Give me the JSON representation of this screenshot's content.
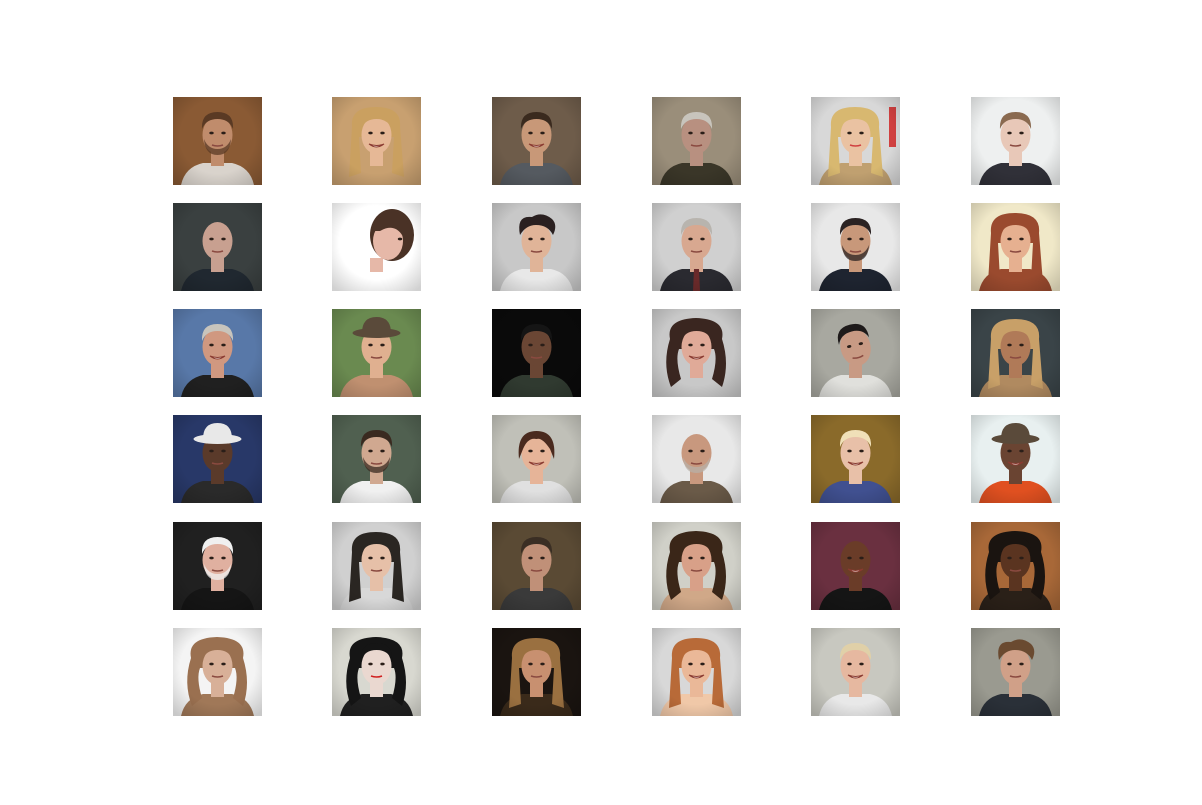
{
  "grid": {
    "rows": 6,
    "cols": 6,
    "tiles": [
      {
        "kind": "face",
        "sex": "m",
        "bg": "#8a5a34",
        "skin": "#c08c6c",
        "hair": "#5a3a24",
        "shirt": "#d9d3cc",
        "hairStyle": "short",
        "beard": true
      },
      {
        "kind": "face",
        "sex": "f",
        "bg": "#c8a070",
        "skin": "#e6b896",
        "hair": "#caa060",
        "shirt": "#c8a070",
        "hairStyle": "long",
        "smile": true
      },
      {
        "kind": "face",
        "sex": "m",
        "bg": "#6e5c4a",
        "skin": "#c89878",
        "hair": "#3a2a1e",
        "shirt": "#555a60",
        "hairStyle": "short",
        "smile": true
      },
      {
        "kind": "face",
        "sex": "m",
        "bg": "#9a8e7a",
        "skin": "#b89080",
        "hair": "#c8c4bc",
        "shirt": "#3a3628",
        "hairStyle": "short"
      },
      {
        "kind": "face",
        "sex": "f",
        "bg": "#d8d8d8",
        "skin": "#eac2a2",
        "hair": "#d8b870",
        "shirt": "#c0a070",
        "hairStyle": "long",
        "accent": "#d04040"
      },
      {
        "kind": "face",
        "sex": "m",
        "bg": "#eef0f0",
        "skin": "#e8c8b8",
        "hair": "#8a6a50",
        "shirt": "#303038",
        "hairStyle": "short"
      },
      {
        "kind": "face",
        "sex": "m",
        "bg": "#3a4040",
        "skin": "#c8a090",
        "hair": "#4a4440",
        "shirt": "#202830",
        "hairStyle": "bald"
      },
      {
        "kind": "face",
        "sex": "f",
        "bg": "#ffffff",
        "skin": "#e6b8a8",
        "hair": "#4a3226",
        "shirt": "#ffffff",
        "hairStyle": "side"
      },
      {
        "kind": "face",
        "sex": "m",
        "bg": "#c8c8c8",
        "skin": "#e0b498",
        "hair": "#2a2020",
        "shirt": "#e8e8e8",
        "hairStyle": "messy"
      },
      {
        "kind": "face",
        "sex": "m",
        "bg": "#d0d0d0",
        "skin": "#d8a890",
        "hair": "#b8b4ae",
        "shirt": "#2a2a30",
        "hairStyle": "short",
        "tie": true
      },
      {
        "kind": "face",
        "sex": "m",
        "bg": "#e8e8e8",
        "skin": "#c8987a",
        "hair": "#2a2222",
        "shirt": "#1e2430",
        "hairStyle": "short",
        "beard": true
      },
      {
        "kind": "face",
        "sex": "f",
        "bg": "#f0e8c8",
        "skin": "#e6b090",
        "hair": "#9a4a2e",
        "shirt": "#9a4a2e",
        "hairStyle": "long"
      },
      {
        "kind": "face",
        "sex": "m",
        "bg": "#5878a8",
        "skin": "#d09880",
        "hair": "#c8c4bc",
        "shirt": "#202020",
        "hairStyle": "short",
        "smile": true
      },
      {
        "kind": "face",
        "sex": "f",
        "bg": "#6a8a50",
        "skin": "#e0b090",
        "hair": "#8a6040",
        "shirt": "#c09070",
        "hairStyle": "hat",
        "hat": "#5a4a3a"
      },
      {
        "kind": "face",
        "sex": "m",
        "bg": "#0a0a0a",
        "skin": "#6a4634",
        "hair": "#151515",
        "shirt": "#303a30",
        "hairStyle": "short"
      },
      {
        "kind": "face",
        "sex": "f",
        "bg": "#c8c8c8",
        "skin": "#e0aa98",
        "hair": "#3a2620",
        "shirt": "#c8c8c8",
        "hairStyle": "curly",
        "smile": true
      },
      {
        "kind": "face",
        "sex": "m",
        "bg": "#a8a8a0",
        "skin": "#c89a84",
        "hair": "#1e1a1a",
        "shirt": "#e0e0dc",
        "hairStyle": "short",
        "tilt": true
      },
      {
        "kind": "face",
        "sex": "f",
        "bg": "#3a4448",
        "skin": "#b07a58",
        "hair": "#c8a068",
        "shirt": "#b08a60",
        "hairStyle": "long"
      },
      {
        "kind": "face",
        "sex": "m",
        "bg": "#283868",
        "skin": "#5a3a2a",
        "hair": "#202020",
        "shirt": "#2a2a2a",
        "hairStyle": "hat",
        "hat": "#e8e8e8"
      },
      {
        "kind": "face",
        "sex": "m",
        "bg": "#506050",
        "skin": "#d0a890",
        "hair": "#3a2a20",
        "shirt": "#f0f0f0",
        "hairStyle": "short",
        "beard": true
      },
      {
        "kind": "face",
        "sex": "f",
        "bg": "#c0c0b8",
        "skin": "#e6b498",
        "hair": "#4a2a1e",
        "shirt": "#e0e0e0",
        "hairStyle": "bob",
        "smile": true,
        "accent": "#c03030"
      },
      {
        "kind": "face",
        "sex": "m",
        "bg": "#e8e8e8",
        "skin": "#c8987e",
        "hair": "#b8b0a8",
        "shirt": "#6a5a48",
        "hairStyle": "bald",
        "beard": true
      },
      {
        "kind": "face",
        "sex": "f",
        "bg": "#8a6a2a",
        "skin": "#e8c0a8",
        "hair": "#f0e0b8",
        "shirt": "#405090",
        "hairStyle": "short",
        "smile": true
      },
      {
        "kind": "face",
        "sex": "f",
        "bg": "#e8f0f0",
        "skin": "#6a4432",
        "hair": "#2a2018",
        "shirt": "#e05020",
        "hairStyle": "hat",
        "hat": "#5a4a3a",
        "smile": true
      },
      {
        "kind": "face",
        "sex": "m",
        "bg": "#202020",
        "skin": "#e0b0a0",
        "hair": "#f0f0f0",
        "shirt": "#151515",
        "hairStyle": "white",
        "beard": true,
        "whiteBeard": true
      },
      {
        "kind": "face",
        "sex": "f",
        "bg": "#d0d0d0",
        "skin": "#e6c0a8",
        "hair": "#2a2622",
        "shirt": "#d8d8d8",
        "hairStyle": "long"
      },
      {
        "kind": "face",
        "sex": "m",
        "bg": "#5a4a34",
        "skin": "#c09078",
        "hair": "#3a2e24",
        "shirt": "#3a3a3a",
        "hairStyle": "short"
      },
      {
        "kind": "face",
        "sex": "f",
        "bg": "#d0d0c8",
        "skin": "#d8a088",
        "hair": "#3a2618",
        "shirt": "#d0a888",
        "hairStyle": "curly"
      },
      {
        "kind": "face",
        "sex": "m",
        "bg": "#6a3040",
        "skin": "#6a3c28",
        "hair": "#151010",
        "shirt": "#151515",
        "hairStyle": "bald",
        "smile": true
      },
      {
        "kind": "face",
        "sex": "m",
        "bg": "#a86838",
        "skin": "#5a3420",
        "hair": "#1a1410",
        "shirt": "#2a2018",
        "hairStyle": "curly"
      },
      {
        "kind": "face",
        "sex": "f",
        "bg": "#f4f4f4",
        "skin": "#d8b098",
        "hair": "#9a7050",
        "shirt": "#a07858",
        "hairStyle": "curly"
      },
      {
        "kind": "face",
        "sex": "f",
        "bg": "#d8d8d0",
        "skin": "#ead8d0",
        "hair": "#151515",
        "shirt": "#202020",
        "hairStyle": "curly",
        "accent": "#d02020"
      },
      {
        "kind": "face",
        "sex": "f",
        "bg": "#1a1410",
        "skin": "#c89070",
        "hair": "#9a7040",
        "shirt": "#3a2a1a",
        "hairStyle": "long"
      },
      {
        "kind": "face",
        "sex": "f",
        "bg": "#d8d8d8",
        "skin": "#eab898",
        "hair": "#b86a38",
        "shirt": "#f0c8a8",
        "hairStyle": "long",
        "smile": true
      },
      {
        "kind": "face",
        "sex": "f",
        "bg": "#c8c8c0",
        "skin": "#e6b8a0",
        "hair": "#e0d0a8",
        "shirt": "#e8e8e8",
        "hairStyle": "short",
        "smile": true
      },
      {
        "kind": "face",
        "sex": "f",
        "bg": "#9a9a90",
        "skin": "#d0a088",
        "hair": "#6a4a30",
        "shirt": "#2a3038",
        "hairStyle": "messy"
      }
    ]
  }
}
